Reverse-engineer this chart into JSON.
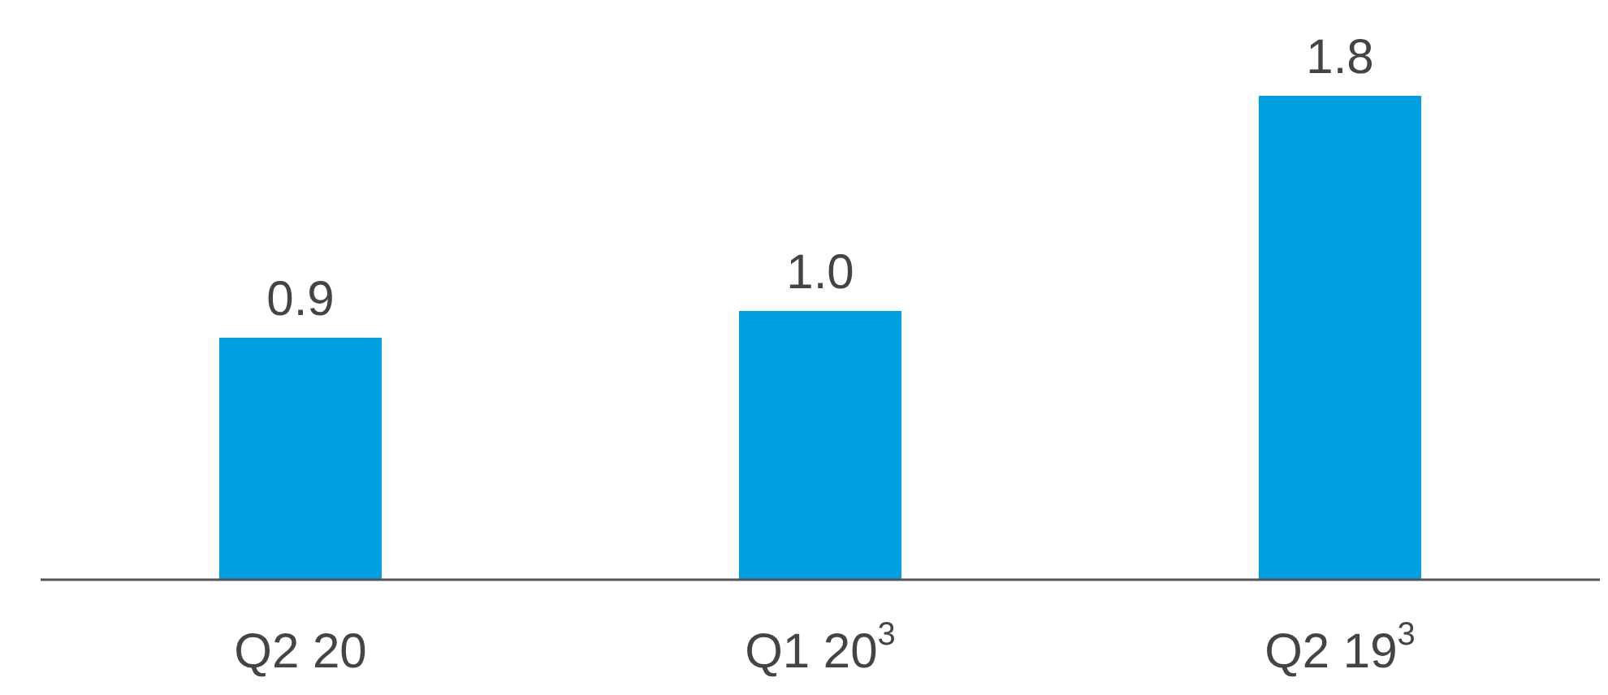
{
  "chart_data": {
    "type": "bar",
    "categories": [
      "Q2 20",
      "Q1 20$^{3}$",
      "Q2 19$^{3}$"
    ],
    "values": [
      0.9,
      1.0,
      1.8
    ],
    "value_labels": [
      "0.9",
      "1.0",
      "1.8"
    ],
    "color": "#009fe0",
    "legend": false
  }
}
